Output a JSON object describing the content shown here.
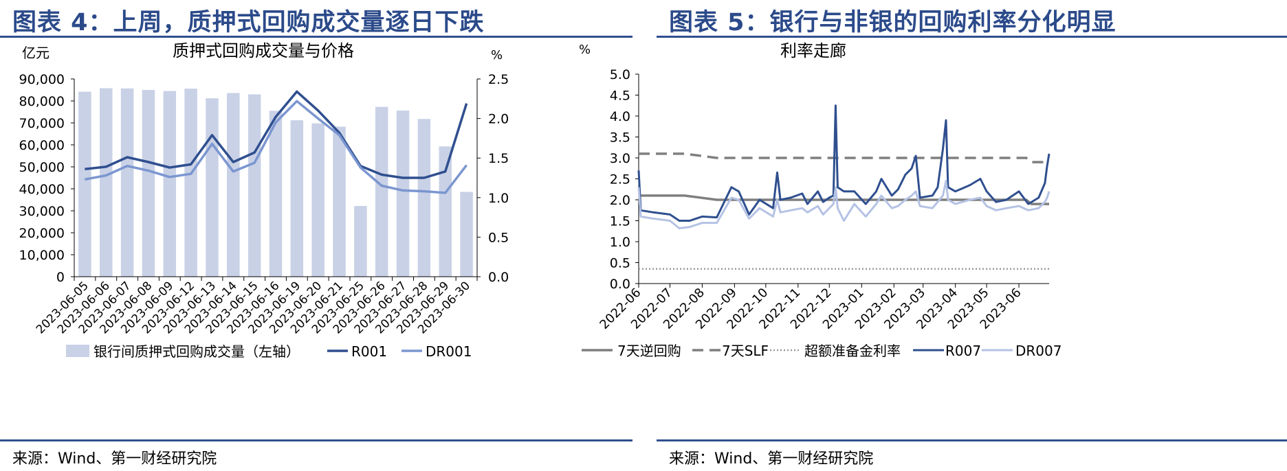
{
  "panel_left": {
    "header": "图表 4：上周，质押式回购成交量逐日下跌",
    "source": "来源：Wind、第一财经研究院"
  },
  "panel_right": {
    "header": "图表 5：银行与非银的回购利率分化明显",
    "source": "来源：Wind、第一财经研究院"
  },
  "colors": {
    "header_blue": "#2b4a8a",
    "bar": "#c9d1e6",
    "r001": "#2f4f8f",
    "dr001": "#7b96d0",
    "repo7": "#7f7f7f",
    "slf": "#7f7f7f",
    "excess": "#9a9a9a",
    "r007": "#2f4f8f",
    "dr007": "#b4c2e4"
  },
  "chart_data": [
    {
      "type": "bar",
      "title": "质押式回购成交量与价格",
      "ylabel": "亿元",
      "ylabel_right": "%",
      "categories": [
        "2023-06-05",
        "2023-06-06",
        "2023-06-07",
        "2023-06-08",
        "2023-06-09",
        "2023-06-12",
        "2023-06-13",
        "2023-06-14",
        "2023-06-15",
        "2023-06-16",
        "2023-06-19",
        "2023-06-20",
        "2023-06-21",
        "2023-06-25",
        "2023-06-26",
        "2023-06-27",
        "2023-06-28",
        "2023-06-29",
        "2023-06-30"
      ],
      "ylim": [
        0,
        90000
      ],
      "yticks": [
        "0",
        "10,000",
        "20,000",
        "30,000",
        "40,000",
        "50,000",
        "60,000",
        "70,000",
        "80,000",
        "90,000"
      ],
      "ylim_right": [
        0,
        2.5
      ],
      "yticks_right": [
        "0.0",
        "0.5",
        "1.0",
        "1.5",
        "2.0",
        "2.5"
      ],
      "series": [
        {
          "name": "银行间质押式回购成交量（左轴）",
          "kind": "bar",
          "axis": "left",
          "values": [
            84200,
            85800,
            85700,
            85000,
            84500,
            85600,
            81200,
            83600,
            83000,
            75500,
            71200,
            69800,
            68300,
            32200,
            77300,
            75600,
            71800,
            59300,
            38600
          ]
        },
        {
          "name": "R001",
          "kind": "line",
          "axis": "right",
          "values": [
            1.36,
            1.39,
            1.51,
            1.45,
            1.38,
            1.42,
            1.79,
            1.45,
            1.57,
            2.02,
            2.34,
            2.1,
            1.82,
            1.4,
            1.29,
            1.25,
            1.25,
            1.33,
            2.19
          ]
        },
        {
          "name": "DR001",
          "kind": "line",
          "axis": "right",
          "values": [
            1.23,
            1.28,
            1.4,
            1.34,
            1.26,
            1.3,
            1.68,
            1.33,
            1.44,
            1.95,
            2.22,
            2.0,
            1.79,
            1.38,
            1.15,
            1.09,
            1.08,
            1.06,
            1.41
          ]
        }
      ],
      "grid": false,
      "legend": "bottom"
    },
    {
      "type": "line",
      "title": "利率走廊",
      "ylabel": "%",
      "ylim": [
        0,
        5.0
      ],
      "yticks": [
        "0.0",
        "0.5",
        "1.0",
        "1.5",
        "2.0",
        "2.5",
        "3.0",
        "3.5",
        "4.0",
        "4.5",
        "5.0"
      ],
      "xticks": [
        "2022-06",
        "2022-07",
        "2022-08",
        "2022-09",
        "2022-10",
        "2022-11",
        "2022-12",
        "2023-01",
        "2023-02",
        "2023-03",
        "2023-04",
        "2023-05",
        "2023-06"
      ],
      "series": [
        {
          "name": "7天逆回购",
          "style": "solid",
          "points": [
            [
              "2022-06",
              2.1
            ],
            [
              "2022-07-15",
              2.1
            ],
            [
              "2022-08-15",
              2.0
            ],
            [
              "2023-06-08",
              2.0
            ],
            [
              "2023-06-13",
              1.9
            ],
            [
              "2023-06-30",
              1.9
            ]
          ]
        },
        {
          "name": "7天SLF",
          "style": "dashed",
          "points": [
            [
              "2022-06",
              3.1
            ],
            [
              "2022-07-15",
              3.1
            ],
            [
              "2022-08-15",
              3.0
            ],
            [
              "2023-06-08",
              3.0
            ],
            [
              "2023-06-13",
              2.9
            ],
            [
              "2023-06-30",
              2.9
            ]
          ]
        },
        {
          "name": "超额准备金利率",
          "style": "dotted",
          "points": [
            [
              "2022-06",
              0.35
            ],
            [
              "2023-06-30",
              0.35
            ]
          ]
        },
        {
          "name": "R007",
          "style": "solid",
          "points": [
            [
              "2022-06-01",
              2.7
            ],
            [
              "2022-06-03",
              1.75
            ],
            [
              "2022-06-15",
              1.7
            ],
            [
              "2022-07-01",
              1.65
            ],
            [
              "2022-07-10",
              1.5
            ],
            [
              "2022-07-20",
              1.5
            ],
            [
              "2022-08-01",
              1.6
            ],
            [
              "2022-08-15",
              1.58
            ],
            [
              "2022-08-29",
              2.3
            ],
            [
              "2022-09-05",
              2.2
            ],
            [
              "2022-09-15",
              1.65
            ],
            [
              "2022-09-25",
              2.0
            ],
            [
              "2022-10-08",
              1.8
            ],
            [
              "2022-10-12",
              2.65
            ],
            [
              "2022-10-15",
              2.0
            ],
            [
              "2022-10-25",
              2.05
            ],
            [
              "2022-11-05",
              2.15
            ],
            [
              "2022-11-10",
              1.9
            ],
            [
              "2022-11-20",
              2.2
            ],
            [
              "2022-11-25",
              1.95
            ],
            [
              "2022-12-01",
              2.05
            ],
            [
              "2022-12-05",
              2.1
            ],
            [
              "2022-12-07",
              4.25
            ],
            [
              "2022-12-09",
              2.3
            ],
            [
              "2022-12-15",
              2.2
            ],
            [
              "2022-12-25",
              2.2
            ],
            [
              "2023-01-05",
              1.9
            ],
            [
              "2023-01-15",
              2.2
            ],
            [
              "2023-01-20",
              2.5
            ],
            [
              "2023-01-30",
              2.1
            ],
            [
              "2023-02-05",
              2.25
            ],
            [
              "2023-02-12",
              2.6
            ],
            [
              "2023-02-18",
              2.75
            ],
            [
              "2023-02-22",
              3.05
            ],
            [
              "2023-02-26",
              2.05
            ],
            [
              "2023-03-10",
              2.1
            ],
            [
              "2023-03-15",
              2.3
            ],
            [
              "2023-03-20",
              3.2
            ],
            [
              "2023-03-23",
              3.9
            ],
            [
              "2023-03-25",
              2.3
            ],
            [
              "2023-04-01",
              2.2
            ],
            [
              "2023-04-15",
              2.35
            ],
            [
              "2023-04-25",
              2.5
            ],
            [
              "2023-05-01",
              2.2
            ],
            [
              "2023-05-10",
              1.95
            ],
            [
              "2023-05-20",
              2.0
            ],
            [
              "2023-06-01",
              2.2
            ],
            [
              "2023-06-10",
              1.9
            ],
            [
              "2023-06-20",
              2.05
            ],
            [
              "2023-06-26",
              2.4
            ],
            [
              "2023-06-28",
              2.8
            ],
            [
              "2023-06-30",
              3.1
            ]
          ]
        },
        {
          "name": "DR007",
          "style": "solid",
          "points": [
            [
              "2022-06-01",
              2.3
            ],
            [
              "2022-06-03",
              1.6
            ],
            [
              "2022-06-15",
              1.55
            ],
            [
              "2022-07-01",
              1.5
            ],
            [
              "2022-07-10",
              1.32
            ],
            [
              "2022-07-20",
              1.35
            ],
            [
              "2022-08-01",
              1.45
            ],
            [
              "2022-08-15",
              1.45
            ],
            [
              "2022-08-29",
              2.05
            ],
            [
              "2022-09-05",
              2.0
            ],
            [
              "2022-09-15",
              1.55
            ],
            [
              "2022-09-25",
              1.8
            ],
            [
              "2022-10-08",
              1.6
            ],
            [
              "2022-10-12",
              2.0
            ],
            [
              "2022-10-15",
              1.7
            ],
            [
              "2022-10-25",
              1.75
            ],
            [
              "2022-11-05",
              1.8
            ],
            [
              "2022-11-10",
              1.7
            ],
            [
              "2022-11-20",
              1.85
            ],
            [
              "2022-11-25",
              1.65
            ],
            [
              "2022-12-01",
              1.8
            ],
            [
              "2022-12-05",
              1.9
            ],
            [
              "2022-12-07",
              2.3
            ],
            [
              "2022-12-09",
              1.8
            ],
            [
              "2022-12-15",
              1.5
            ],
            [
              "2022-12-25",
              1.9
            ],
            [
              "2023-01-05",
              1.6
            ],
            [
              "2023-01-15",
              1.9
            ],
            [
              "2023-01-20",
              2.1
            ],
            [
              "2023-01-30",
              1.8
            ],
            [
              "2023-02-05",
              1.85
            ],
            [
              "2023-02-12",
              2.0
            ],
            [
              "2023-02-18",
              2.1
            ],
            [
              "2023-02-22",
              2.2
            ],
            [
              "2023-02-26",
              1.85
            ],
            [
              "2023-03-10",
              1.8
            ],
            [
              "2023-03-15",
              1.95
            ],
            [
              "2023-03-20",
              2.1
            ],
            [
              "2023-03-23",
              2.45
            ],
            [
              "2023-03-25",
              2.0
            ],
            [
              "2023-04-01",
              1.9
            ],
            [
              "2023-04-15",
              2.0
            ],
            [
              "2023-04-25",
              2.05
            ],
            [
              "2023-05-01",
              1.85
            ],
            [
              "2023-05-10",
              1.75
            ],
            [
              "2023-05-20",
              1.8
            ],
            [
              "2023-06-01",
              1.85
            ],
            [
              "2023-06-10",
              1.75
            ],
            [
              "2023-06-20",
              1.8
            ],
            [
              "2023-06-26",
              1.95
            ],
            [
              "2023-06-28",
              2.05
            ],
            [
              "2023-06-30",
              2.2
            ]
          ]
        }
      ],
      "grid": false,
      "legend": "bottom"
    }
  ]
}
